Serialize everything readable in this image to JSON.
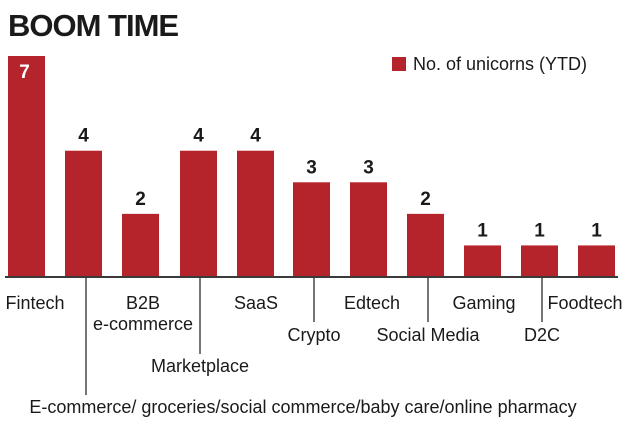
{
  "colors": {
    "bar": "#b5242b",
    "axis": "#3a3a3a",
    "text": "#1a1a1a",
    "value_label_inside": "#ffffff"
  },
  "chart_data": {
    "type": "bar",
    "title": "BOOM TIME",
    "legend": {
      "label": "No. of unicorns (YTD)",
      "placement": "top-right"
    },
    "categories": [
      "Fintech",
      "E-commerce/ groceries/social commerce/baby care/online pharmacy",
      "B2B e-commerce",
      "Marketplace",
      "SaaS",
      "Crypto",
      "Edtech",
      "Social Media",
      "Gaming",
      "D2C",
      "Foodtech"
    ],
    "category_label_lines": [
      [
        "Fintech"
      ],
      [
        "E-commerce/ groceries/social commerce/baby care/online pharmacy"
      ],
      [
        "B2B",
        "e-commerce"
      ],
      [
        "Marketplace"
      ],
      [
        "SaaS"
      ],
      [
        "Crypto"
      ],
      [
        "Edtech"
      ],
      [
        "Social Media"
      ],
      [
        "Gaming"
      ],
      [
        "D2C"
      ],
      [
        "Foodtech"
      ]
    ],
    "values": [
      7,
      4,
      2,
      4,
      4,
      3,
      3,
      2,
      1,
      1,
      1
    ],
    "ylim": [
      0,
      7
    ],
    "xlabel": "",
    "ylabel": "",
    "grid": false
  }
}
